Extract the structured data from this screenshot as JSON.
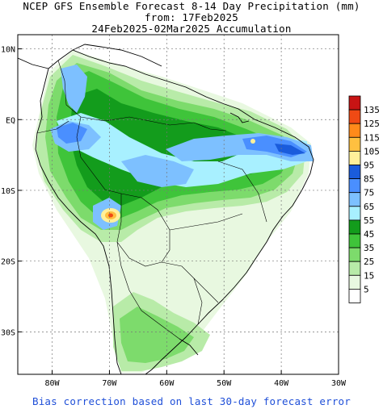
{
  "title": {
    "line1": "NCEP GFS Ensemble Forecast 8-14 Day Precipitation (mm)",
    "line2": "from: 17Feb2025",
    "line3": "24Feb2025-02Mar2025 Accumulation"
  },
  "footer": "Bias correction based on last 30-day forecast error",
  "axes": {
    "lat_labels": [
      "10N",
      "EQ",
      "10S",
      "20S",
      "30S"
    ],
    "lon_labels": [
      "80W",
      "70W",
      "60W",
      "50W",
      "40W",
      "30W"
    ],
    "lat_range": [
      12,
      -36
    ],
    "lon_range": [
      -86,
      -30
    ]
  },
  "legend": {
    "levels": [
      "135",
      "125",
      "115",
      "105",
      "95",
      "85",
      "75",
      "65",
      "55",
      "45",
      "35",
      "25",
      "15",
      "5"
    ],
    "colors": [
      "#ffffff",
      "#e8f8e0",
      "#b8eba8",
      "#7ddb6c",
      "#3fc43a",
      "#139c1c",
      "#a8f0ff",
      "#7dc0ff",
      "#4a8fff",
      "#1a5cdc",
      "#fff09a",
      "#ffc040",
      "#ff8a1a",
      "#f04a14",
      "#c81414"
    ]
  }
}
